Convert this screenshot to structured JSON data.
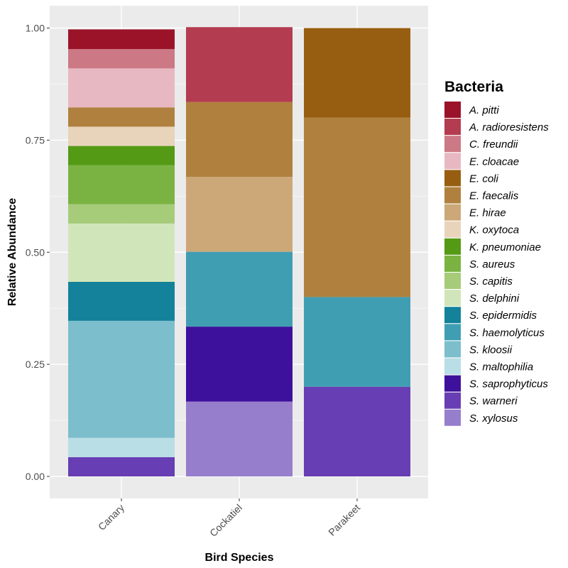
{
  "chart_data": {
    "type": "bar",
    "stacked": true,
    "title": "",
    "xlabel": "Bird Species",
    "ylabel": "Relative Abundance",
    "ylim": [
      0,
      1
    ],
    "yticks": [
      0,
      0.25,
      0.5,
      0.75,
      1
    ],
    "ytick_labels": [
      "0.00",
      "0.25",
      "0.50",
      "0.75",
      "1.00"
    ],
    "categories": [
      "Canary",
      "Cockatiel",
      "Parakeet"
    ],
    "legend_title": "Bacteria",
    "legend_position": "right",
    "series": [
      {
        "name": "A. pitti",
        "color": "#9B1329",
        "values": [
          0.044,
          0,
          0
        ]
      },
      {
        "name": "A. radioresistens",
        "color": "#B43C50",
        "values": [
          0,
          0.167,
          0
        ]
      },
      {
        "name": "C. freundii",
        "color": "#CC7985",
        "values": [
          0.043,
          0,
          0
        ]
      },
      {
        "name": "E. cloacae",
        "color": "#E8B8C2",
        "values": [
          0.087,
          0,
          0
        ]
      },
      {
        "name": "E. coli",
        "color": "#975E12",
        "values": [
          0,
          0,
          0.2
        ]
      },
      {
        "name": "E. faecalis",
        "color": "#B0813E",
        "values": [
          0.043,
          0.167,
          0.4
        ]
      },
      {
        "name": "E. hirae",
        "color": "#CCA878",
        "values": [
          0,
          0.167,
          0
        ]
      },
      {
        "name": "K. oxytoca",
        "color": "#E8D4BB",
        "values": [
          0.043,
          0,
          0
        ]
      },
      {
        "name": "K. pneumoniae",
        "color": "#549A15",
        "values": [
          0.043,
          0,
          0
        ]
      },
      {
        "name": "S. aureus",
        "color": "#7BB342",
        "values": [
          0.087,
          0,
          0
        ]
      },
      {
        "name": "S. capitis",
        "color": "#A6CC7A",
        "values": [
          0.043,
          0,
          0
        ]
      },
      {
        "name": "S. delphini",
        "color": "#D0E6BA",
        "values": [
          0.13,
          0,
          0
        ]
      },
      {
        "name": "S. epidermidis",
        "color": "#13829A",
        "values": [
          0.087,
          0,
          0
        ]
      },
      {
        "name": "S. haemolyticus",
        "color": "#409EB3",
        "values": [
          0,
          0.167,
          0.2
        ]
      },
      {
        "name": "S. kloosii",
        "color": "#7CBECC",
        "values": [
          0.261,
          0,
          0
        ]
      },
      {
        "name": "S. maltophilia",
        "color": "#B9DEE6",
        "values": [
          0.043,
          0,
          0
        ]
      },
      {
        "name": "S. saprophyticus",
        "color": "#3D119C",
        "values": [
          0,
          0.167,
          0
        ]
      },
      {
        "name": "S. warneri",
        "color": "#673EB3",
        "values": [
          0.043,
          0,
          0.2
        ]
      },
      {
        "name": "S. xylosus",
        "color": "#977ECC",
        "values": [
          0,
          0.167,
          0
        ]
      }
    ]
  }
}
